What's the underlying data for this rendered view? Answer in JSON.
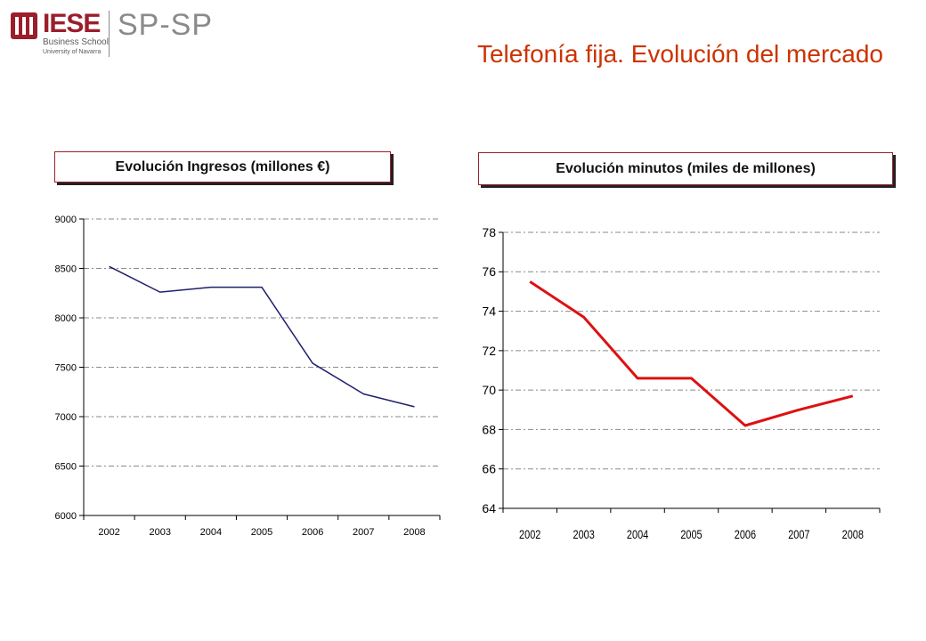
{
  "logo": {
    "name": "IESE",
    "subtitle": "Business School",
    "university": "University of Navarra",
    "program": "SP-SP"
  },
  "page_title": "Telefonía fija. Evolución del mercado",
  "chart_data": [
    {
      "type": "line",
      "title": "Evolución Ingresos (millones €)",
      "xlabel": "",
      "ylabel": "",
      "categories": [
        "2002",
        "2003",
        "2004",
        "2005",
        "2006",
        "2007",
        "2008"
      ],
      "values": [
        8520,
        8260,
        8310,
        8310,
        7540,
        7230,
        7100
      ],
      "ylim": [
        6000,
        9000
      ],
      "yticks": [
        "6000",
        "6500",
        "7000",
        "7500",
        "8000",
        "8500",
        "9000"
      ],
      "grid": true,
      "color": "#1f1f6e"
    },
    {
      "type": "line",
      "title": "Evolución minutos (miles de millones)",
      "xlabel": "",
      "ylabel": "",
      "categories": [
        "2002",
        "2003",
        "2004",
        "2005",
        "2006",
        "2007",
        "2008"
      ],
      "values": [
        75.5,
        73.7,
        70.6,
        70.6,
        68.2,
        69.0,
        69.7
      ],
      "ylim": [
        64,
        78
      ],
      "yticks": [
        "64",
        "66",
        "68",
        "70",
        "72",
        "74",
        "76",
        "78"
      ],
      "grid": true,
      "color": "#dd1111"
    }
  ]
}
